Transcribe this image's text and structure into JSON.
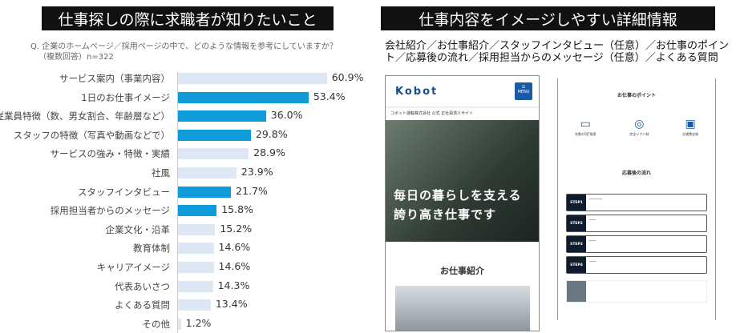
{
  "left": {
    "title": "仕事探しの際に求職者が知りたいこと",
    "question": "Q. 企業のホームページ／採用ページの中で、どのような情報を参考にしていますか？",
    "note": "（複数回答）n=322"
  },
  "chart_data": {
    "type": "bar",
    "orientation": "horizontal",
    "categories": [
      "サービス案内（事業内容）",
      "1日のお仕事イメージ",
      "従業員特徴（数、男女割合、年齢層など）",
      "スタッフの特徴（写真や動画などで）",
      "サービスの強み・特徴・実績",
      "社風",
      "スタッフインタビュー",
      "採用担当者からのメッセージ",
      "企業文化・沿革",
      "教育体制",
      "キャリアイメージ",
      "代表あいさつ",
      "よくある質問",
      "その他"
    ],
    "values": [
      60.9,
      53.4,
      36.0,
      29.8,
      28.9,
      23.9,
      21.7,
      15.8,
      15.2,
      14.6,
      14.6,
      14.3,
      13.4,
      1.2
    ],
    "labels": [
      "60.9%",
      "53.4%",
      "36.0%",
      "29.8%",
      "28.9%",
      "23.9%",
      "21.7%",
      "15.8%",
      "15.2%",
      "14.6%",
      "14.6%",
      "14.3%",
      "13.4%",
      "1.2%"
    ],
    "highlighted": [
      false,
      true,
      true,
      true,
      false,
      false,
      true,
      true,
      false,
      false,
      false,
      false,
      false,
      false
    ],
    "colors": {
      "highlight": "#0f9bd7",
      "normal": "#dde8f4"
    }
  },
  "right": {
    "title": "仕事内容をイメージしやすい詳細情報",
    "description": "会社紹介／お仕事紹介／スタッフインタビュー（任意）／お仕事のポイント／応募後の流れ／採用担当からのメッセージ（任意）／よくある質問",
    "phone": {
      "logo": "Kobot",
      "menu": "MENU",
      "site": "コボット運輸株式会社 公式 正社員求人サイト",
      "hero1": "毎日の暮らしを支える",
      "hero2": "誇り高き仕事です",
      "section": "お仕事紹介"
    },
    "paper": {
      "points_title": "お仕事のポイント",
      "points": [
        "充実のOJT指導",
        "完全シフト制",
        "交通費支給"
      ],
      "flow_title": "応募後の流れ",
      "steps": [
        "STEP1",
        "STEP2",
        "STEP3",
        "STEP4"
      ]
    }
  }
}
